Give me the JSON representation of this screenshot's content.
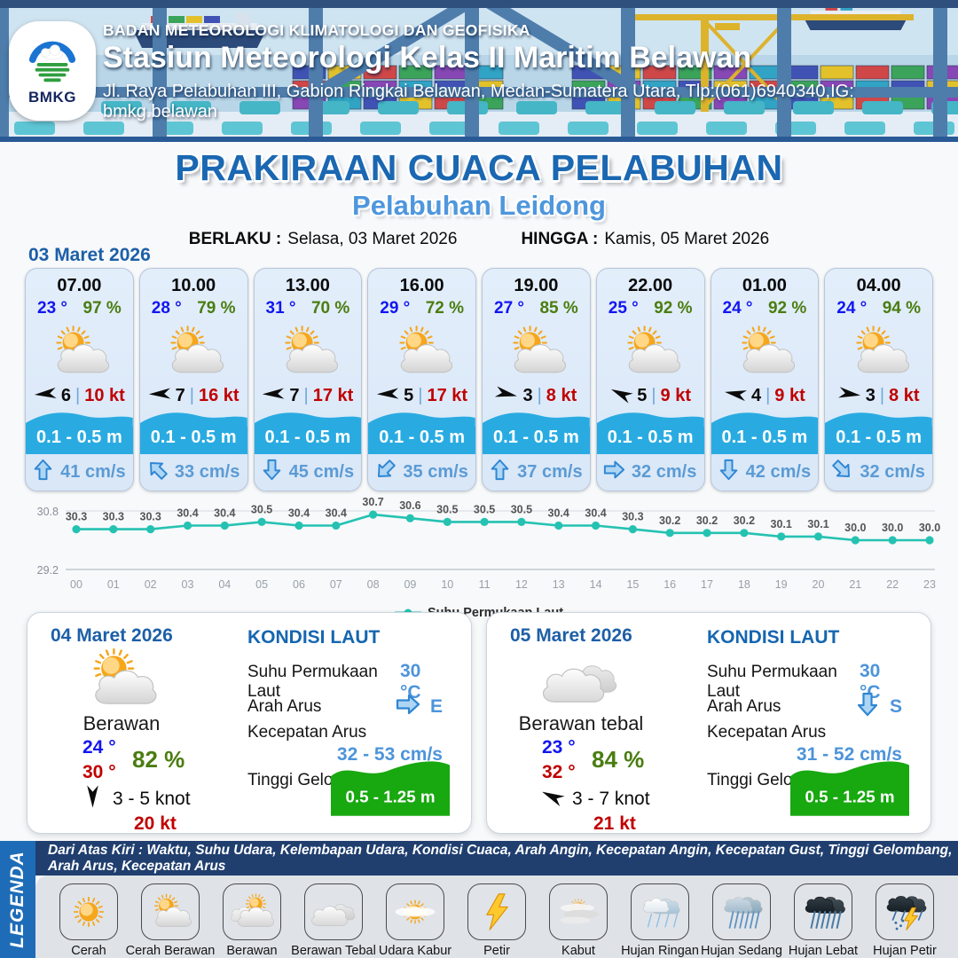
{
  "colors": {
    "accent_blue": "#1a67b2",
    "port_blue": "#4e97dd",
    "date_blue": "#1d5fa7",
    "card_bg": "#dce9f8",
    "wave_band": "#29abe2",
    "temp_blue": "#1216f0",
    "humidity_green": "#4a7d10",
    "gust_red": "#c00000",
    "current_blue": "#5b9bd5",
    "chart_line": "#25c2b2",
    "sea_green": "#18a810",
    "legend_band": "#1e6cb7",
    "note_bar": "#203f6f"
  },
  "header": {
    "org": "BADAN METEOROLOGI KLIMATOLOGI DAN GEOFISIKA",
    "station": "Stasiun Meteorologi Kelas II Maritim Belawan",
    "address": "Jl. Raya Pelabuhan III, Gabion Ringkai Belawan, Medan-Sumatera Utara, Tlp:(061)6940340,IG: bmkg.belawan",
    "logo_text": "BMKG"
  },
  "title": {
    "main": "PRAKIRAAN CUACA PELABUHAN",
    "port": "Pelabuhan Leidong",
    "valid_label": "BERLAKU :",
    "valid_value": "Selasa, 03 Maret 2026",
    "until_label": "HINGGA :",
    "until_value": "Kamis, 05 Maret 2026"
  },
  "hourly": {
    "date": "03 Maret 2026",
    "cards": [
      {
        "time": "07.00",
        "temp": "23 °",
        "humidity": "97 %",
        "icon": "cerah-berawan",
        "wind_dir_deg": 175,
        "wind_speed": "6",
        "gust": "10 kt",
        "wave": "0.1 - 0.5 m",
        "current_dir_deg": 0,
        "current": "41 cm/s"
      },
      {
        "time": "10.00",
        "temp": "28 °",
        "humidity": "79 %",
        "icon": "cerah-berawan",
        "wind_dir_deg": 178,
        "wind_speed": "7",
        "gust": "16 kt",
        "wave": "0.1 - 0.5 m",
        "current_dir_deg": 315,
        "current": "33 cm/s"
      },
      {
        "time": "13.00",
        "temp": "31 °",
        "humidity": "70 %",
        "icon": "cerah-berawan",
        "wind_dir_deg": 178,
        "wind_speed": "7",
        "gust": "17 kt",
        "wave": "0.1 - 0.5 m",
        "current_dir_deg": 180,
        "current": "45 cm/s"
      },
      {
        "time": "16.00",
        "temp": "29 °",
        "humidity": "72 %",
        "icon": "cerah-berawan",
        "wind_dir_deg": 178,
        "wind_speed": "5",
        "gust": "17 kt",
        "wave": "0.1 - 0.5 m",
        "current_dir_deg": 225,
        "current": "35 cm/s"
      },
      {
        "time": "19.00",
        "temp": "27 °",
        "humidity": "85 %",
        "icon": "cerah-berawan",
        "wind_dir_deg": 12,
        "wind_speed": "3",
        "gust": "8 kt",
        "wave": "0.1 - 0.5 m",
        "current_dir_deg": 0,
        "current": "37 cm/s"
      },
      {
        "time": "22.00",
        "temp": "25 °",
        "humidity": "92 %",
        "icon": "cerah-berawan",
        "wind_dir_deg": 205,
        "wind_speed": "5",
        "gust": "9 kt",
        "wave": "0.1 - 0.5 m",
        "current_dir_deg": 90,
        "current": "32 cm/s"
      },
      {
        "time": "01.00",
        "temp": "24 °",
        "humidity": "92 %",
        "icon": "cerah-berawan",
        "wind_dir_deg": 190,
        "wind_speed": "4",
        "gust": "9 kt",
        "wave": "0.1 - 0.5 m",
        "current_dir_deg": 180,
        "current": "42 cm/s"
      },
      {
        "time": "04.00",
        "temp": "24 °",
        "humidity": "94 %",
        "icon": "cerah-berawan",
        "wind_dir_deg": 8,
        "wind_speed": "3",
        "gust": "8 kt",
        "wave": "0.1 - 0.5 m",
        "current_dir_deg": 135,
        "current": "32 cm/s"
      }
    ]
  },
  "chart_data": {
    "type": "line",
    "title": "",
    "x": [
      "00",
      "01",
      "02",
      "03",
      "04",
      "05",
      "06",
      "07",
      "08",
      "09",
      "10",
      "11",
      "12",
      "13",
      "14",
      "15",
      "16",
      "17",
      "18",
      "19",
      "20",
      "21",
      "22",
      "23"
    ],
    "series": [
      {
        "name": "Suhu Permukaan Laut",
        "values": [
          30.3,
          30.3,
          30.3,
          30.4,
          30.4,
          30.5,
          30.4,
          30.4,
          30.7,
          30.6,
          30.5,
          30.5,
          30.5,
          30.4,
          30.4,
          30.3,
          30.2,
          30.2,
          30.2,
          30.1,
          30.1,
          30.0,
          30.0,
          30.0
        ]
      }
    ],
    "ylim": [
      29.2,
      30.8
    ],
    "yticks": [
      "30.8",
      "29.2"
    ],
    "line_color": "#25c2b2",
    "legend_position": "bottom",
    "grid": true
  },
  "daily": [
    {
      "date": "04 Maret 2026",
      "icon": "cerah-berawan",
      "condition": "Berawan",
      "temp_min": "24 °",
      "temp_max": "30 °",
      "humidity": "82 %",
      "wind_dir_deg": 90,
      "wind": "3 - 5 knot",
      "gust": "20 kt",
      "sea": {
        "heading": "KONDISI LAUT",
        "sst_label": "Suhu Permukaan Laut",
        "sst": "30 °C",
        "dir_label": "Arah Arus",
        "dir": "E",
        "dir_deg": 90,
        "speed_label": "Kecepatan Arus",
        "speed": "32 - 53 cm/s",
        "wave_label": "Tinggi Gelombang",
        "wave": "0.5 - 1.25 m"
      }
    },
    {
      "date": "05 Maret 2026",
      "icon": "berawan-tebal",
      "condition": "Berawan tebal",
      "temp_min": "23 °",
      "temp_max": "32 °",
      "humidity": "84 %",
      "wind_dir_deg": 205,
      "wind": "3 - 7 knot",
      "gust": "21 kt",
      "sea": {
        "heading": "KONDISI LAUT",
        "sst_label": "Suhu Permukaan Laut",
        "sst": "30 °C",
        "dir_label": "Arah Arus",
        "dir": "S",
        "dir_deg": 180,
        "speed_label": "Kecepatan Arus",
        "speed": "31 - 52 cm/s",
        "wave_label": "Tinggi Gelombang",
        "wave": "0.5 - 1.25 m"
      }
    }
  ],
  "legend": {
    "title": "LEGENDA",
    "note": "Dari Atas Kiri : Waktu, Suhu Udara, Kelembapan Udara, Kondisi Cuaca, Arah Angin, Kecepatan Angin, Kecepatan Gust, Tinggi Gelombang, Arah Arus, Kecepatan Arus",
    "items": [
      {
        "label": "Cerah",
        "icon": "cerah"
      },
      {
        "label": "Cerah Berawan",
        "icon": "cerah-berawan"
      },
      {
        "label": "Berawan",
        "icon": "berawan"
      },
      {
        "label": "Berawan Tebal",
        "icon": "berawan-tebal"
      },
      {
        "label": "Udara Kabur",
        "icon": "udara-kabur"
      },
      {
        "label": "Petir",
        "icon": "petir"
      },
      {
        "label": "Kabut",
        "icon": "kabut"
      },
      {
        "label": "Hujan Ringan",
        "icon": "hujan-ringan"
      },
      {
        "label": "Hujan Sedang",
        "icon": "hujan-sedang"
      },
      {
        "label": "Hujan Lebat",
        "icon": "hujan-lebat"
      },
      {
        "label": "Hujan Petir",
        "icon": "hujan-petir"
      }
    ]
  }
}
